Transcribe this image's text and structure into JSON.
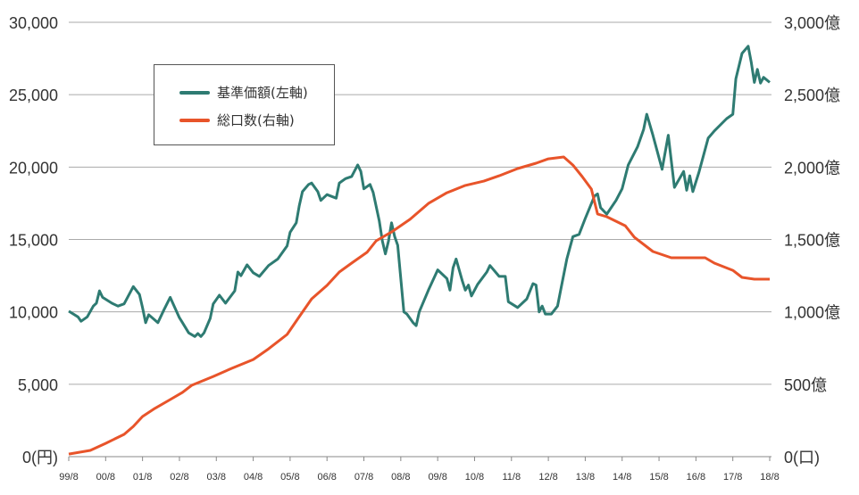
{
  "chart_data": {
    "type": "line",
    "title": "",
    "x_unit": "months since 99/8",
    "x_tick_labels": [
      "99/8",
      "00/8",
      "01/8",
      "02/8",
      "03/8",
      "04/8",
      "05/8",
      "06/8",
      "07/8",
      "08/8",
      "09/8",
      "10/8",
      "11/8",
      "12/8",
      "13/8",
      "14/8",
      "15/8",
      "16/8",
      "17/8",
      "18/8"
    ],
    "xlim": [
      0,
      228
    ],
    "y_left": {
      "ylim": [
        0,
        30000
      ],
      "tick_labels": [
        "0(円)",
        "5,000",
        "10,000",
        "15,000",
        "20,000",
        "25,000",
        "30,000"
      ]
    },
    "y_right": {
      "ylim": [
        0,
        3000
      ],
      "tick_labels": [
        "0(口)",
        "500億",
        "1,000億",
        "1,500億",
        "2,000億",
        "2,500億",
        "3,000億"
      ]
    },
    "grid": true,
    "legend_position": "top-left",
    "series": [
      {
        "name": "基準価額(左軸)",
        "axis": "left",
        "color": "#2e7b72",
        "points": [
          [
            0,
            10050
          ],
          [
            3,
            9650
          ],
          [
            4,
            9350
          ],
          [
            6,
            9650
          ],
          [
            8,
            10400
          ],
          [
            9,
            10600
          ],
          [
            10,
            11450
          ],
          [
            11,
            11000
          ],
          [
            14,
            10600
          ],
          [
            16,
            10400
          ],
          [
            18,
            10550
          ],
          [
            21,
            11750
          ],
          [
            23,
            11200
          ],
          [
            24,
            10300
          ],
          [
            25,
            9250
          ],
          [
            26,
            9800
          ],
          [
            29,
            9250
          ],
          [
            31,
            10150
          ],
          [
            33,
            11000
          ],
          [
            36,
            9600
          ],
          [
            37,
            9250
          ],
          [
            39,
            8550
          ],
          [
            41,
            8300
          ],
          [
            42,
            8500
          ],
          [
            43,
            8300
          ],
          [
            44,
            8550
          ],
          [
            46,
            9550
          ],
          [
            47,
            10550
          ],
          [
            49,
            11150
          ],
          [
            51,
            10600
          ],
          [
            54,
            11450
          ],
          [
            55,
            12750
          ],
          [
            56,
            12500
          ],
          [
            58,
            13250
          ],
          [
            60,
            12700
          ],
          [
            62,
            12450
          ],
          [
            65,
            13200
          ],
          [
            68,
            13650
          ],
          [
            71,
            14550
          ],
          [
            72,
            15500
          ],
          [
            74,
            16150
          ],
          [
            75,
            17350
          ],
          [
            76,
            18300
          ],
          [
            78,
            18800
          ],
          [
            79,
            18900
          ],
          [
            81,
            18300
          ],
          [
            82,
            17700
          ],
          [
            84,
            18100
          ],
          [
            87,
            17850
          ],
          [
            88,
            18900
          ],
          [
            90,
            19200
          ],
          [
            92,
            19350
          ],
          [
            94,
            20150
          ],
          [
            95,
            19700
          ],
          [
            96,
            18500
          ],
          [
            98,
            18800
          ],
          [
            99,
            18250
          ],
          [
            101,
            16300
          ],
          [
            102,
            14900
          ],
          [
            103,
            14000
          ],
          [
            104,
            14900
          ],
          [
            105,
            16150
          ],
          [
            106,
            15200
          ],
          [
            107,
            14600
          ],
          [
            109,
            10000
          ],
          [
            110,
            9850
          ],
          [
            112,
            9250
          ],
          [
            113,
            9050
          ],
          [
            114,
            10000
          ],
          [
            117,
            11500
          ],
          [
            120,
            12900
          ],
          [
            123,
            12300
          ],
          [
            124,
            11500
          ],
          [
            125,
            13050
          ],
          [
            126,
            13650
          ],
          [
            128,
            12150
          ],
          [
            129,
            11500
          ],
          [
            130,
            11850
          ],
          [
            131,
            11100
          ],
          [
            133,
            11900
          ],
          [
            136,
            12750
          ],
          [
            137,
            13200
          ],
          [
            140,
            12450
          ],
          [
            142,
            12450
          ],
          [
            143,
            10700
          ],
          [
            146,
            10300
          ],
          [
            149,
            10900
          ],
          [
            151,
            11950
          ],
          [
            152,
            11850
          ],
          [
            153,
            10000
          ],
          [
            154,
            10400
          ],
          [
            155,
            9850
          ],
          [
            157,
            9850
          ],
          [
            159,
            10400
          ],
          [
            160,
            11500
          ],
          [
            162,
            13650
          ],
          [
            164,
            15200
          ],
          [
            166,
            15350
          ],
          [
            168,
            16450
          ],
          [
            171,
            18000
          ],
          [
            172,
            18150
          ],
          [
            173,
            17200
          ],
          [
            175,
            16750
          ],
          [
            178,
            17700
          ],
          [
            180,
            18500
          ],
          [
            182,
            20150
          ],
          [
            185,
            21400
          ],
          [
            187,
            22600
          ],
          [
            188,
            23650
          ],
          [
            190,
            22200
          ],
          [
            193,
            19850
          ],
          [
            195,
            22200
          ],
          [
            197,
            18600
          ],
          [
            200,
            19700
          ],
          [
            201,
            18400
          ],
          [
            202,
            19400
          ],
          [
            203,
            18300
          ],
          [
            205,
            19650
          ],
          [
            208,
            22000
          ],
          [
            210,
            22500
          ],
          [
            214,
            23350
          ],
          [
            216,
            23650
          ],
          [
            217,
            26100
          ],
          [
            219,
            27850
          ],
          [
            221,
            28350
          ],
          [
            222,
            27250
          ],
          [
            223,
            25850
          ],
          [
            224,
            26750
          ],
          [
            225,
            25800
          ],
          [
            226,
            26200
          ],
          [
            228,
            25850
          ]
        ]
      },
      {
        "name": "総口数(右軸)",
        "axis": "right",
        "color": "#e8542a",
        "points": [
          [
            0,
            18
          ],
          [
            7,
            43
          ],
          [
            12,
            92
          ],
          [
            18,
            154
          ],
          [
            21,
            209
          ],
          [
            24,
            277
          ],
          [
            28,
            333
          ],
          [
            33,
            394
          ],
          [
            37,
            444
          ],
          [
            40,
            493
          ],
          [
            47,
            554
          ],
          [
            53,
            610
          ],
          [
            60,
            671
          ],
          [
            65,
            745
          ],
          [
            71,
            844
          ],
          [
            75,
            967
          ],
          [
            79,
            1090
          ],
          [
            84,
            1183
          ],
          [
            88,
            1275
          ],
          [
            92,
            1337
          ],
          [
            97,
            1411
          ],
          [
            100,
            1491
          ],
          [
            105,
            1552
          ],
          [
            111,
            1639
          ],
          [
            117,
            1749
          ],
          [
            123,
            1823
          ],
          [
            129,
            1873
          ],
          [
            135,
            1903
          ],
          [
            140,
            1940
          ],
          [
            146,
            1990
          ],
          [
            152,
            2027
          ],
          [
            156,
            2057
          ],
          [
            161,
            2070
          ],
          [
            164,
            2014
          ],
          [
            167,
            1934
          ],
          [
            170,
            1848
          ],
          [
            172,
            1676
          ],
          [
            175,
            1657
          ],
          [
            181,
            1595
          ],
          [
            184,
            1515
          ],
          [
            190,
            1417
          ],
          [
            196,
            1374
          ],
          [
            201,
            1374
          ],
          [
            207,
            1374
          ],
          [
            210,
            1337
          ],
          [
            216,
            1287
          ],
          [
            219,
            1238
          ],
          [
            223,
            1226
          ],
          [
            228,
            1226
          ]
        ]
      }
    ]
  }
}
